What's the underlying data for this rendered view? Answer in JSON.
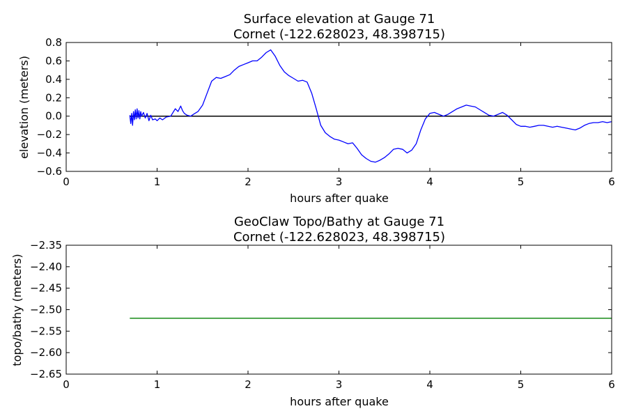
{
  "chart_data": [
    {
      "type": "line",
      "title": "Surface elevation at Gauge 71",
      "subtitle": "Cornet  (-122.628023, 48.398715)",
      "xlabel": "hours after quake",
      "ylabel": "elevation (meters)",
      "xlim": [
        0,
        6
      ],
      "ylim": [
        -0.6,
        0.8
      ],
      "xticks": [
        0,
        1,
        2,
        3,
        4,
        5,
        6
      ],
      "yticks": [
        -0.6,
        -0.4,
        -0.2,
        0.0,
        0.2,
        0.4,
        0.6,
        0.8
      ],
      "ytick_labels": [
        "−0.6",
        "−0.4",
        "−0.2",
        "0.0",
        "0.2",
        "0.4",
        "0.6",
        "0.8"
      ],
      "grid": false,
      "colors": {
        "series": "#0000ff",
        "reference_line": "#000000"
      },
      "reference_line": {
        "y": 0.0
      },
      "series": [
        {
          "x": [
            0.7,
            0.71,
            0.72,
            0.73,
            0.74,
            0.75,
            0.76,
            0.77,
            0.78,
            0.79,
            0.8,
            0.81,
            0.82,
            0.83,
            0.85,
            0.87,
            0.89,
            0.91,
            0.93,
            0.95,
            0.98,
            1.0,
            1.03,
            1.06,
            1.1,
            1.15,
            1.2,
            1.23,
            1.26,
            1.28,
            1.3,
            1.33,
            1.37,
            1.4,
            1.45,
            1.5,
            1.55,
            1.6,
            1.65,
            1.7,
            1.75,
            1.8,
            1.85,
            1.9,
            1.95,
            2.0,
            2.05,
            2.1,
            2.15,
            2.2,
            2.25,
            2.3,
            2.35,
            2.4,
            2.45,
            2.5,
            2.55,
            2.6,
            2.65,
            2.7,
            2.75,
            2.8,
            2.85,
            2.9,
            2.95,
            3.0,
            3.05,
            3.1,
            3.15,
            3.2,
            3.25,
            3.3,
            3.35,
            3.4,
            3.45,
            3.5,
            3.55,
            3.6,
            3.65,
            3.7,
            3.75,
            3.8,
            3.85,
            3.9,
            3.95,
            4.0,
            4.05,
            4.1,
            4.15,
            4.2,
            4.25,
            4.3,
            4.35,
            4.4,
            4.45,
            4.5,
            4.55,
            4.6,
            4.65,
            4.7,
            4.75,
            4.8,
            4.85,
            4.9,
            4.95,
            5.0,
            5.05,
            5.1,
            5.15,
            5.2,
            5.25,
            5.3,
            5.35,
            5.4,
            5.45,
            5.5,
            5.55,
            5.6,
            5.65,
            5.7,
            5.75,
            5.8,
            5.85,
            5.9,
            5.95,
            6.0
          ],
          "values": [
            0.01,
            -0.08,
            0.03,
            -0.1,
            0.05,
            -0.04,
            0.07,
            -0.03,
            0.08,
            -0.02,
            0.06,
            -0.03,
            0.05,
            0.0,
            0.04,
            -0.02,
            0.03,
            -0.05,
            0.01,
            -0.04,
            -0.03,
            -0.05,
            -0.02,
            -0.04,
            -0.01,
            0.0,
            0.08,
            0.05,
            0.11,
            0.06,
            0.03,
            0.01,
            0.0,
            0.02,
            0.05,
            0.12,
            0.25,
            0.38,
            0.42,
            0.41,
            0.43,
            0.45,
            0.5,
            0.54,
            0.56,
            0.58,
            0.6,
            0.6,
            0.64,
            0.69,
            0.72,
            0.65,
            0.55,
            0.48,
            0.44,
            0.41,
            0.38,
            0.39,
            0.37,
            0.25,
            0.08,
            -0.1,
            -0.18,
            -0.22,
            -0.25,
            -0.26,
            -0.28,
            -0.3,
            -0.29,
            -0.35,
            -0.42,
            -0.46,
            -0.49,
            -0.5,
            -0.48,
            -0.45,
            -0.41,
            -0.36,
            -0.35,
            -0.36,
            -0.4,
            -0.37,
            -0.3,
            -0.15,
            -0.03,
            0.03,
            0.04,
            0.02,
            0.0,
            0.02,
            0.05,
            0.08,
            0.1,
            0.12,
            0.11,
            0.1,
            0.07,
            0.04,
            0.01,
            0.0,
            0.02,
            0.04,
            0.01,
            -0.04,
            -0.09,
            -0.11,
            -0.11,
            -0.12,
            -0.11,
            -0.1,
            -0.1,
            -0.11,
            -0.12,
            -0.11,
            -0.12,
            -0.13,
            -0.14,
            -0.15,
            -0.13,
            -0.1,
            -0.08,
            -0.07,
            -0.07,
            -0.06,
            -0.07,
            -0.06
          ]
        }
      ]
    },
    {
      "type": "line",
      "title": "GeoClaw Topo/Bathy at Gauge 71",
      "subtitle": "Cornet  (-122.628023, 48.398715)",
      "xlabel": "hours after quake",
      "ylabel": "topo/bathy (meters)",
      "xlim": [
        0,
        6
      ],
      "ylim": [
        -2.65,
        -2.35
      ],
      "xticks": [
        0,
        1,
        2,
        3,
        4,
        5,
        6
      ],
      "yticks": [
        -2.65,
        -2.6,
        -2.55,
        -2.5,
        -2.45,
        -2.4,
        -2.35
      ],
      "ytick_labels": [
        "−2.65",
        "−2.60",
        "−2.55",
        "−2.50",
        "−2.45",
        "−2.40",
        "−2.35"
      ],
      "grid": false,
      "colors": {
        "series": "#008000"
      },
      "series": [
        {
          "x": [
            0.7,
            6.0
          ],
          "values": [
            -2.52,
            -2.52
          ]
        }
      ]
    }
  ]
}
